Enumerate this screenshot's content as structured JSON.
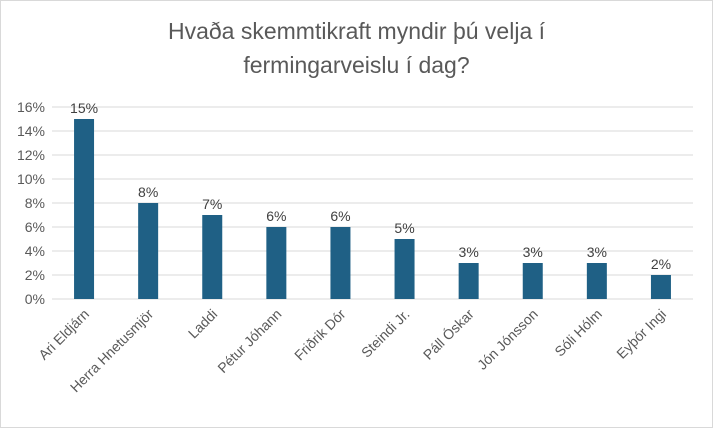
{
  "chart_data": {
    "type": "bar",
    "title": "Hvaða skemmtikraft myndir þú velja í fermingarveislu í dag?",
    "title_lines": [
      "Hvaða skemmtikraft myndir þú velja í",
      "fermingarveislu í dag?"
    ],
    "categories": [
      "Ari Eldjárn",
      "Herra Hnetusmjör",
      "Laddi",
      "Pétur Jóhann",
      "Friðrik Dór",
      "Steindi Jr.",
      "Páll Óskar",
      "Jón Jónsson",
      "Sóli Hólm",
      "Eyþór Ingi"
    ],
    "values": [
      15,
      8,
      7,
      6,
      6,
      5,
      3,
      3,
      3,
      2
    ],
    "data_labels": [
      "15%",
      "8%",
      "7%",
      "6%",
      "6%",
      "5%",
      "3%",
      "3%",
      "3%",
      "2%"
    ],
    "ylim": [
      0,
      16
    ],
    "yticks": [
      0,
      2,
      4,
      6,
      8,
      10,
      12,
      14,
      16
    ],
    "ytick_labels": [
      "0%",
      "2%",
      "4%",
      "6%",
      "8%",
      "10%",
      "12%",
      "14%",
      "16%"
    ],
    "grid": true,
    "legend": "none",
    "xlabel": "",
    "ylabel": ""
  },
  "colors": {
    "bar": "#1f6085",
    "grid": "#d9d9d9",
    "title": "#595959",
    "text": "#595959"
  }
}
